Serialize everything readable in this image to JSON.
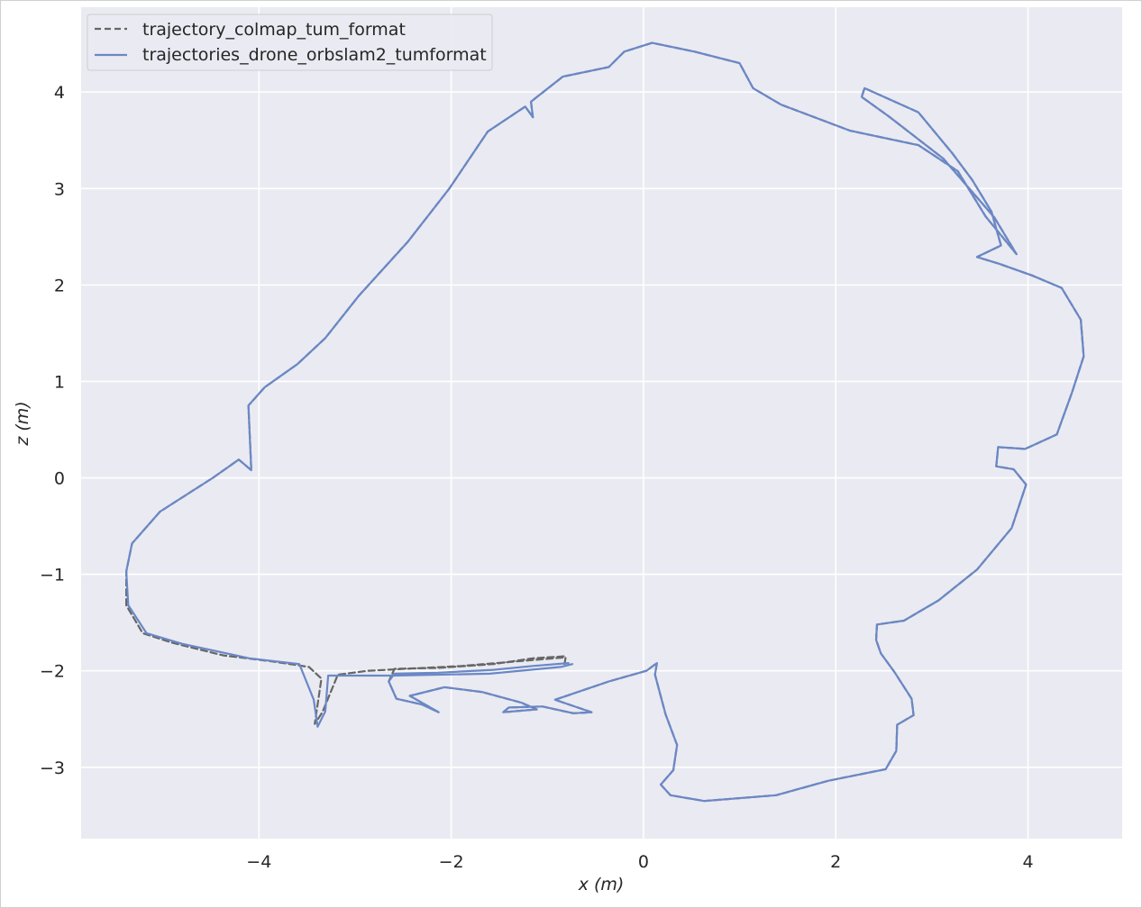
{
  "chart_data": {
    "type": "line",
    "xlabel": "x (m)",
    "ylabel": "z (m)",
    "xlim": [
      -5.85,
      4.98
    ],
    "ylim": [
      -3.74,
      4.88
    ],
    "xticks": [
      -4,
      -2,
      0,
      2,
      4
    ],
    "yticks": [
      -3,
      -2,
      -1,
      0,
      1,
      2,
      3,
      4
    ],
    "xtick_labels": [
      "−4",
      "−2",
      "0",
      "2",
      "4"
    ],
    "ytick_labels": [
      "−3",
      "−2",
      "−1",
      "0",
      "1",
      "2",
      "3",
      "4"
    ],
    "grid": true,
    "legend_position": "top-left",
    "colors": {
      "background": "#EAEAF2",
      "grid": "#FFFFFF",
      "reference": "#666666",
      "estimate": "#6A88C6"
    },
    "series": [
      {
        "name": "trajectory_colmap_tum_format",
        "style": "dashed",
        "x": [
          -0.83,
          -1.15,
          -1.56,
          -2.14,
          -2.59,
          -2.65,
          -2.57,
          -2.3,
          -2.13,
          -2.43,
          -2.07,
          -1.68,
          -1.27,
          -1.11,
          -1.46,
          -1.4,
          -1.05,
          -0.73,
          -0.54,
          -0.92,
          -0.36,
          0.03,
          0.14,
          0.12,
          0.23,
          0.35,
          0.31,
          0.18,
          0.28,
          0.63,
          1.38,
          1.92,
          2.52,
          2.63,
          2.64,
          2.81,
          2.79,
          2.61,
          2.47,
          2.42,
          2.43,
          2.71,
          3.07,
          3.47,
          3.83,
          3.98,
          3.85,
          3.67,
          3.69,
          3.97,
          4.3,
          4.46,
          4.58,
          4.55,
          4.35,
          4.04,
          3.7,
          3.47,
          3.72,
          3.62,
          3.42,
          3.21,
          2.86,
          2.3,
          2.27,
          2.55,
          3.12,
          3.65,
          3.88,
          3.56,
          3.27,
          2.86,
          2.15,
          1.43,
          1.14,
          1.0,
          0.53,
          0.09,
          -0.2,
          -0.36,
          -0.84,
          -1.17,
          -1.15,
          -1.23,
          -1.62,
          -2.02,
          -2.45,
          -2.96,
          -3.31,
          -3.6,
          -3.94,
          -4.11,
          -4.08,
          -4.21,
          -4.48,
          -5.03,
          -5.32,
          -5.38,
          -5.38,
          -5.21,
          -4.9,
          -4.37,
          -3.88,
          -3.48,
          -3.35,
          -3.42,
          -3.34,
          -3.18,
          -2.87,
          -1.89,
          -0.81,
          -0.82
        ],
        "y": [
          -1.85,
          -1.87,
          -1.93,
          -1.97,
          -1.98,
          -2.11,
          -2.29,
          -2.35,
          -2.43,
          -2.26,
          -2.17,
          -2.22,
          -2.33,
          -2.4,
          -2.43,
          -2.38,
          -2.37,
          -2.44,
          -2.43,
          -2.3,
          -2.11,
          -2.0,
          -1.92,
          -2.04,
          -2.45,
          -2.77,
          -3.03,
          -3.18,
          -3.29,
          -3.35,
          -3.29,
          -3.14,
          -3.02,
          -2.83,
          -2.56,
          -2.46,
          -2.29,
          -2.01,
          -1.82,
          -1.68,
          -1.52,
          -1.48,
          -1.27,
          -0.95,
          -0.52,
          -0.07,
          0.09,
          0.12,
          0.32,
          0.3,
          0.45,
          0.89,
          1.26,
          1.64,
          1.97,
          2.1,
          2.22,
          2.29,
          2.41,
          2.76,
          3.09,
          3.37,
          3.79,
          4.04,
          3.95,
          3.75,
          3.31,
          2.7,
          2.32,
          2.71,
          3.18,
          3.45,
          3.6,
          3.87,
          4.04,
          4.3,
          4.42,
          4.51,
          4.42,
          4.26,
          4.16,
          3.9,
          3.74,
          3.85,
          3.59,
          3.0,
          2.45,
          1.89,
          1.45,
          1.18,
          0.94,
          0.75,
          0.08,
          0.19,
          0.0,
          -0.35,
          -0.68,
          -0.97,
          -1.32,
          -1.61,
          -1.71,
          -1.84,
          -1.9,
          -1.96,
          -2.08,
          -2.55,
          -2.43,
          -2.04,
          -2.0,
          -1.95,
          -1.86,
          -1.93
        ]
      },
      {
        "name": "trajectories_drone_orbslam2_tumformat",
        "style": "solid",
        "x": [
          -0.78,
          -1.15,
          -1.56,
          -2.14,
          -2.59,
          -2.65,
          -2.57,
          -2.3,
          -2.13,
          -2.43,
          -2.07,
          -1.68,
          -1.27,
          -1.11,
          -1.46,
          -1.4,
          -1.05,
          -0.73,
          -0.54,
          -0.92,
          -0.36,
          0.03,
          0.14,
          0.12,
          0.23,
          0.35,
          0.31,
          0.18,
          0.28,
          0.63,
          1.38,
          1.92,
          2.52,
          2.63,
          2.64,
          2.81,
          2.79,
          2.61,
          2.47,
          2.42,
          2.43,
          2.71,
          3.07,
          3.47,
          3.83,
          3.98,
          3.85,
          3.67,
          3.69,
          3.97,
          4.3,
          4.46,
          4.58,
          4.55,
          4.35,
          4.04,
          3.7,
          3.47,
          3.72,
          3.62,
          3.42,
          3.21,
          2.86,
          2.3,
          2.27,
          2.55,
          3.12,
          3.65,
          3.88,
          3.56,
          3.27,
          2.86,
          2.15,
          1.43,
          1.14,
          1.0,
          0.53,
          0.09,
          -0.2,
          -0.36,
          -0.84,
          -1.17,
          -1.15,
          -1.23,
          -1.62,
          -2.02,
          -2.45,
          -2.96,
          -3.31,
          -3.6,
          -3.94,
          -4.11,
          -4.08,
          -4.21,
          -4.48,
          -5.03,
          -5.32,
          -5.38,
          -5.36,
          -5.17,
          -4.8,
          -4.1,
          -3.58,
          -3.43,
          -3.39,
          -3.31,
          -3.28,
          -3.05,
          -2.6,
          -1.6,
          -0.86,
          -0.74
        ],
        "y": [
          -1.92,
          -1.95,
          -1.99,
          -2.02,
          -2.03,
          -2.11,
          -2.29,
          -2.35,
          -2.43,
          -2.26,
          -2.17,
          -2.22,
          -2.33,
          -2.4,
          -2.43,
          -2.38,
          -2.37,
          -2.44,
          -2.43,
          -2.3,
          -2.11,
          -2.0,
          -1.92,
          -2.04,
          -2.45,
          -2.77,
          -3.03,
          -3.18,
          -3.29,
          -3.35,
          -3.29,
          -3.14,
          -3.02,
          -2.83,
          -2.56,
          -2.46,
          -2.29,
          -2.01,
          -1.82,
          -1.68,
          -1.52,
          -1.48,
          -1.27,
          -0.95,
          -0.52,
          -0.07,
          0.09,
          0.12,
          0.32,
          0.3,
          0.45,
          0.89,
          1.26,
          1.64,
          1.97,
          2.1,
          2.22,
          2.29,
          2.41,
          2.76,
          3.09,
          3.37,
          3.79,
          4.04,
          3.95,
          3.75,
          3.31,
          2.7,
          2.32,
          2.71,
          3.18,
          3.45,
          3.6,
          3.87,
          4.04,
          4.3,
          4.42,
          4.51,
          4.42,
          4.26,
          4.16,
          3.9,
          3.74,
          3.85,
          3.59,
          3.0,
          2.45,
          1.89,
          1.45,
          1.18,
          0.94,
          0.75,
          0.08,
          0.19,
          0.0,
          -0.35,
          -0.68,
          -0.97,
          -1.32,
          -1.61,
          -1.72,
          -1.87,
          -1.93,
          -2.3,
          -2.58,
          -2.42,
          -2.05,
          -2.05,
          -2.05,
          -2.03,
          -1.96,
          -1.93
        ]
      }
    ]
  }
}
